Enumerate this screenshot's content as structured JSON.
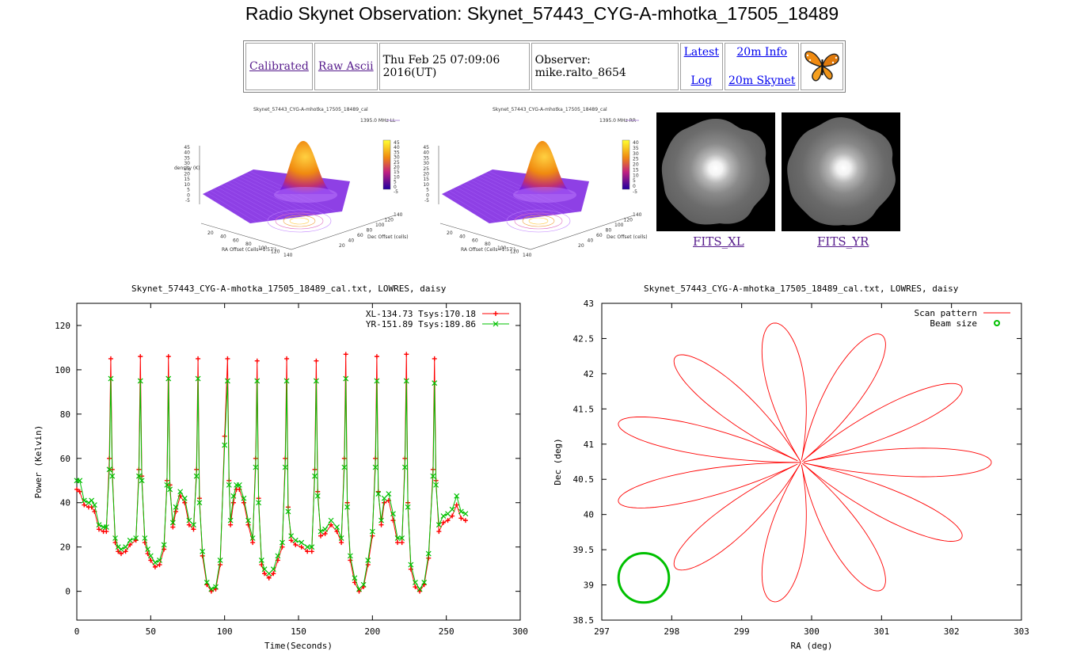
{
  "page": {
    "title": "Radio Skynet Observation: Skynet_57443_CYG-A-mhotka_17505_18489"
  },
  "nav": {
    "calibrated": "Calibrated",
    "raw_ascii": "Raw Ascii",
    "datetime": "Thu Feb 25 07:09:06 2016(UT)",
    "observer": "Observer: mike.ralto_8654",
    "latest": "Latest",
    "log": "Log",
    "info_20m": "20m Info",
    "skynet_20m": "20m Skynet",
    "butterfly_icon": "butterfly-logo"
  },
  "surface_plots": [
    {
      "title": "Skynet_57443_CYG-A-mhotka_17505_18489_cal",
      "legend": "1395.0 MHz LL",
      "zlabel": "density (K)",
      "xlabel": "RA Offset (Cells=1.57')",
      "ylabel": "Dec Offset (cells)",
      "z_ticks": [
        "45",
        "40",
        "35",
        "30",
        "25",
        "20",
        "15",
        "10",
        "5",
        "0",
        "-5"
      ],
      "cb_ticks": [
        "45",
        "40",
        "35",
        "30",
        "25",
        "20",
        "15",
        "10",
        "5",
        "0",
        "-5"
      ],
      "x_ticks": [
        "20",
        "40",
        "60",
        "80",
        "100",
        "120",
        "140"
      ],
      "y_ticks": [
        "20",
        "40",
        "60",
        "80",
        "100",
        "120",
        "140"
      ]
    },
    {
      "title": "Skynet_57443_CYG-A-mhotka_17505_18489_cal",
      "legend": "1395.0 MHz RR",
      "zlabel": "",
      "xlabel": "RA Offset (Cells=1.57')",
      "ylabel": "Dec Offset (cells)",
      "z_ticks": [
        "45",
        "40",
        "35",
        "30",
        "25",
        "20",
        "15",
        "10",
        "5",
        "0",
        "-5"
      ],
      "cb_ticks": [
        "40",
        "35",
        "30",
        "25",
        "20",
        "15",
        "10",
        "5",
        "0",
        "-5"
      ],
      "x_ticks": [
        "20",
        "40",
        "60",
        "80",
        "100",
        "120",
        "140"
      ],
      "y_ticks": [
        "20",
        "40",
        "60",
        "80",
        "100",
        "120",
        "140"
      ]
    }
  ],
  "fits": {
    "xl_label": "FITS_XL",
    "yr_label": "FITS_YR"
  },
  "power_chart": {
    "title": "Skynet_57443_CYG-A-mhotka_17505_18489_cal.txt, LOWRES, daisy"
  },
  "scan_chart": {
    "title": "Skynet_57443_CYG-A-mhotka_17505_18489_cal.txt, LOWRES, daisy"
  },
  "chart_data": [
    {
      "type": "line",
      "xlabel": "Time(Seconds)",
      "ylabel": "Power (Kelvin)",
      "xlim": [
        0,
        300
      ],
      "ylim": [
        -13,
        130
      ],
      "x_ticks": [
        0,
        50,
        100,
        150,
        200,
        250,
        300
      ],
      "y_ticks": [
        0,
        20,
        40,
        60,
        80,
        100,
        120
      ],
      "legend_position": "top-right",
      "series": [
        {
          "name": "XL-134.73 Tsys:170.18",
          "color": "#ff0000",
          "marker": "plus",
          "x": [
            0,
            2,
            5,
            8,
            10,
            12,
            15,
            18,
            20,
            22,
            23,
            24,
            26,
            28,
            30,
            33,
            36,
            40,
            42,
            43,
            44,
            46,
            48,
            50,
            53,
            56,
            59,
            61,
            62,
            63,
            65,
            67,
            70,
            73,
            76,
            79,
            81,
            82,
            83,
            85,
            88,
            91,
            94,
            97,
            100,
            102,
            103,
            104,
            106,
            108,
            110,
            113,
            116,
            119,
            121,
            122,
            123,
            125,
            127,
            130,
            133,
            136,
            139,
            141,
            142,
            143,
            145,
            148,
            152,
            156,
            159,
            161,
            162,
            163,
            165,
            168,
            172,
            176,
            179,
            181,
            182,
            183,
            185,
            188,
            191,
            194,
            197,
            200,
            202,
            203,
            204,
            206,
            208,
            211,
            214,
            217,
            220,
            222,
            223,
            224,
            226,
            229,
            232,
            235,
            238,
            241,
            242,
            243,
            245,
            248,
            251,
            254,
            257,
            260,
            263
          ],
          "y": [
            46,
            45,
            39,
            38,
            38,
            36,
            28,
            27,
            27,
            60,
            105,
            55,
            22,
            18,
            17,
            18,
            21,
            23,
            55,
            106,
            52,
            22,
            17,
            14,
            11,
            12,
            19,
            50,
            106,
            48,
            29,
            36,
            43,
            40,
            30,
            28,
            55,
            105,
            42,
            16,
            3,
            0,
            1,
            12,
            70,
            105,
            50,
            30,
            40,
            46,
            46,
            40,
            30,
            22,
            60,
            104,
            42,
            12,
            8,
            6,
            8,
            14,
            20,
            60,
            105,
            38,
            23,
            21,
            20,
            18,
            18,
            55,
            104,
            45,
            25,
            26,
            30,
            27,
            22,
            60,
            107,
            40,
            14,
            4,
            0,
            2,
            12,
            25,
            60,
            106,
            45,
            30,
            40,
            41,
            32,
            22,
            22,
            60,
            107,
            40,
            10,
            2,
            0,
            3,
            15,
            55,
            105,
            50,
            27,
            31,
            32,
            34,
            39,
            33,
            32
          ]
        },
        {
          "name": "YR-151.89 Tsys:189.86",
          "color": "#00c000",
          "marker": "x",
          "x": [
            0,
            2,
            5,
            8,
            10,
            12,
            15,
            18,
            20,
            22,
            23,
            24,
            26,
            28,
            30,
            33,
            36,
            40,
            42,
            43,
            44,
            46,
            48,
            50,
            53,
            56,
            59,
            61,
            62,
            63,
            65,
            67,
            70,
            73,
            76,
            79,
            81,
            82,
            83,
            85,
            88,
            91,
            94,
            97,
            100,
            102,
            103,
            104,
            106,
            108,
            110,
            113,
            116,
            119,
            121,
            122,
            123,
            125,
            127,
            130,
            133,
            136,
            139,
            141,
            142,
            143,
            145,
            148,
            152,
            156,
            159,
            161,
            162,
            163,
            165,
            168,
            172,
            176,
            179,
            181,
            182,
            183,
            185,
            188,
            191,
            194,
            197,
            200,
            202,
            203,
            204,
            206,
            208,
            211,
            214,
            217,
            220,
            222,
            223,
            224,
            226,
            229,
            232,
            235,
            238,
            241,
            242,
            243,
            245,
            248,
            251,
            254,
            257,
            260,
            263
          ],
          "y": [
            50,
            50,
            41,
            40,
            41,
            39,
            30,
            29,
            29,
            55,
            96,
            52,
            24,
            20,
            19,
            20,
            23,
            24,
            52,
            95,
            50,
            24,
            19,
            16,
            13,
            14,
            21,
            48,
            96,
            46,
            31,
            38,
            45,
            42,
            32,
            30,
            52,
            96,
            40,
            18,
            4,
            1,
            2,
            14,
            66,
            95,
            48,
            32,
            43,
            48,
            48,
            42,
            32,
            24,
            56,
            95,
            40,
            14,
            10,
            8,
            10,
            16,
            22,
            56,
            95,
            36,
            25,
            23,
            22,
            20,
            20,
            52,
            95,
            43,
            27,
            28,
            32,
            29,
            24,
            56,
            96,
            38,
            16,
            6,
            1,
            3,
            14,
            27,
            56,
            95,
            44,
            32,
            42,
            44,
            35,
            24,
            24,
            56,
            95,
            38,
            12,
            4,
            1,
            4,
            17,
            52,
            94,
            48,
            30,
            34,
            35,
            37,
            43,
            36,
            35
          ]
        }
      ]
    },
    {
      "type": "scatter",
      "xlabel": "RA (deg)",
      "ylabel": "Dec (deg)",
      "xlim": [
        297,
        303
      ],
      "ylim": [
        38.5,
        43
      ],
      "x_ticks": [
        297,
        298,
        299,
        300,
        301,
        302,
        303
      ],
      "y_ticks": [
        38.5,
        39,
        39.5,
        40,
        40.5,
        41,
        41.5,
        42,
        42.5,
        43
      ],
      "legend_position": "top-right",
      "series": [
        {
          "name": "Scan pattern",
          "color": "#ff0000",
          "shape": "daisy",
          "center": [
            299.85,
            40.74
          ],
          "radius_x": 2.72,
          "radius_y": 2.0,
          "petals": 11
        },
        {
          "name": "Beam size",
          "color": "#00c000",
          "shape": "circle",
          "center": [
            297.6,
            39.1
          ],
          "radius_x": 0.36,
          "radius_y": 0.35
        }
      ]
    }
  ]
}
